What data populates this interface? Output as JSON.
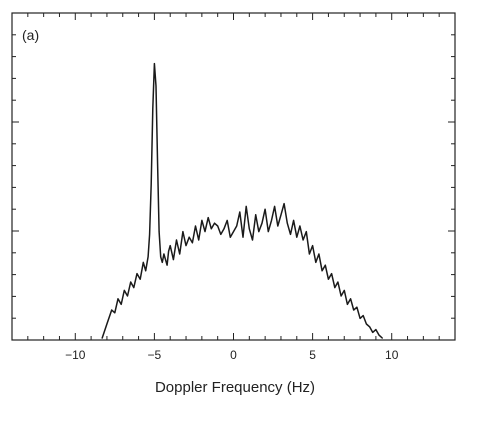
{
  "chart_data": {
    "type": "line",
    "panel_label": "(a)",
    "title": "",
    "xlabel": "Doppler Frequency (Hz)",
    "ylabel": "",
    "xlim": [
      -14,
      14
    ],
    "ylim": [
      0,
      1
    ],
    "x_ticks": [
      -10,
      -5,
      0,
      5,
      10
    ],
    "x_tick_labels": [
      "-10",
      "-5",
      "0",
      "5",
      "10"
    ],
    "y_tick_labels_shown": false,
    "grid": false,
    "legend": "none",
    "line_color": "#1a1a1a",
    "series": [
      {
        "x": [
          -8.3,
          -8.0,
          -7.7,
          -7.5,
          -7.3,
          -7.1,
          -6.9,
          -6.7,
          -6.5,
          -6.3,
          -6.1,
          -5.9,
          -5.7,
          -5.55,
          -5.4,
          -5.3,
          -5.2,
          -5.1,
          -5.0,
          -4.9,
          -4.8,
          -4.7,
          -4.6,
          -4.5,
          -4.4,
          -4.3,
          -4.2,
          -4.1,
          -4.0,
          -3.8,
          -3.6,
          -3.4,
          -3.2,
          -3.0,
          -2.8,
          -2.6,
          -2.4,
          -2.2,
          -2.0,
          -1.8,
          -1.6,
          -1.4,
          -1.2,
          -1.0,
          -0.8,
          -0.6,
          -0.4,
          -0.2,
          0.0,
          0.2,
          0.4,
          0.6,
          0.8,
          1.0,
          1.2,
          1.4,
          1.6,
          1.8,
          2.0,
          2.2,
          2.4,
          2.6,
          2.8,
          3.0,
          3.2,
          3.4,
          3.6,
          3.8,
          4.0,
          4.2,
          4.4,
          4.6,
          4.8,
          5.0,
          5.2,
          5.4,
          5.6,
          5.8,
          6.0,
          6.2,
          6.4,
          6.6,
          6.8,
          7.0,
          7.2,
          7.4,
          7.6,
          7.8,
          8.0,
          8.2,
          8.4,
          8.6,
          8.8,
          9.0,
          9.2,
          9.4
        ],
        "y": [
          0.0,
          0.05,
          0.1,
          0.09,
          0.14,
          0.12,
          0.17,
          0.15,
          0.2,
          0.18,
          0.23,
          0.21,
          0.27,
          0.24,
          0.29,
          0.37,
          0.55,
          0.82,
          0.98,
          0.9,
          0.62,
          0.38,
          0.29,
          0.27,
          0.3,
          0.28,
          0.26,
          0.31,
          0.33,
          0.28,
          0.35,
          0.3,
          0.38,
          0.33,
          0.36,
          0.34,
          0.4,
          0.35,
          0.42,
          0.38,
          0.43,
          0.39,
          0.41,
          0.4,
          0.37,
          0.39,
          0.42,
          0.36,
          0.38,
          0.4,
          0.45,
          0.36,
          0.47,
          0.39,
          0.35,
          0.44,
          0.38,
          0.41,
          0.46,
          0.38,
          0.42,
          0.47,
          0.4,
          0.44,
          0.48,
          0.41,
          0.37,
          0.42,
          0.36,
          0.4,
          0.35,
          0.38,
          0.3,
          0.33,
          0.27,
          0.3,
          0.24,
          0.26,
          0.21,
          0.23,
          0.18,
          0.2,
          0.15,
          0.17,
          0.12,
          0.14,
          0.1,
          0.11,
          0.07,
          0.08,
          0.05,
          0.04,
          0.02,
          0.03,
          0.01,
          0.0
        ]
      }
    ]
  }
}
